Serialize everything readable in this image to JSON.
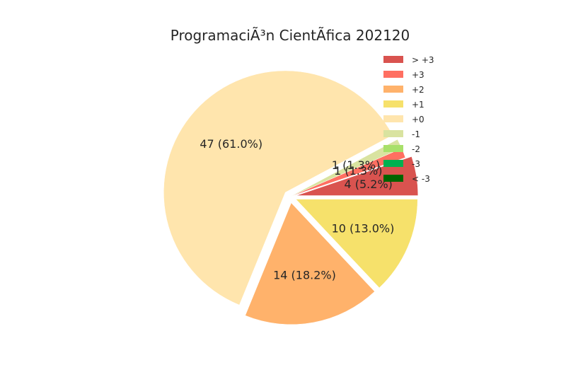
{
  "chart_data": {
    "type": "pie",
    "title": "ProgramaciÃ³n CientÃ­fica 202120",
    "slices": [
      {
        "name": "> +3",
        "value": 4,
        "label": "4 (5.2%)",
        "color": "#d9534f",
        "explode": true
      },
      {
        "name": "+3",
        "value": 1,
        "label": "1 (1.3%)",
        "color": "#ff6f61",
        "explode": false
      },
      {
        "name": "-1",
        "value": 1,
        "label": "1 (1.3%)",
        "color": "#d9e3a0",
        "explode": false
      },
      {
        "name": "+0",
        "value": 47,
        "label": "47 (61.0%)",
        "color": "#ffe5ad",
        "explode": true
      },
      {
        "name": "+2",
        "value": 14,
        "label": "14 (18.2%)",
        "color": "#ffb26b",
        "explode": true
      },
      {
        "name": "+1",
        "value": 10,
        "label": "10 (13.0%)",
        "color": "#f6e16b",
        "explode": true
      }
    ],
    "legend": [
      {
        "name": "> +3",
        "color": "#d9534f"
      },
      {
        "name": "+3",
        "color": "#ff6f61"
      },
      {
        "name": "+2",
        "color": "#ffb26b"
      },
      {
        "name": "+1",
        "color": "#f6e16b"
      },
      {
        "name": "+0",
        "color": "#ffe5ad"
      },
      {
        "name": "-1",
        "color": "#d9e3a0"
      },
      {
        "name": "-2",
        "color": "#a8e06a"
      },
      {
        "name": "-3",
        "color": "#00b050"
      },
      {
        "name": "< -3",
        "color": "#006400"
      }
    ],
    "legend_position": "top-right"
  }
}
